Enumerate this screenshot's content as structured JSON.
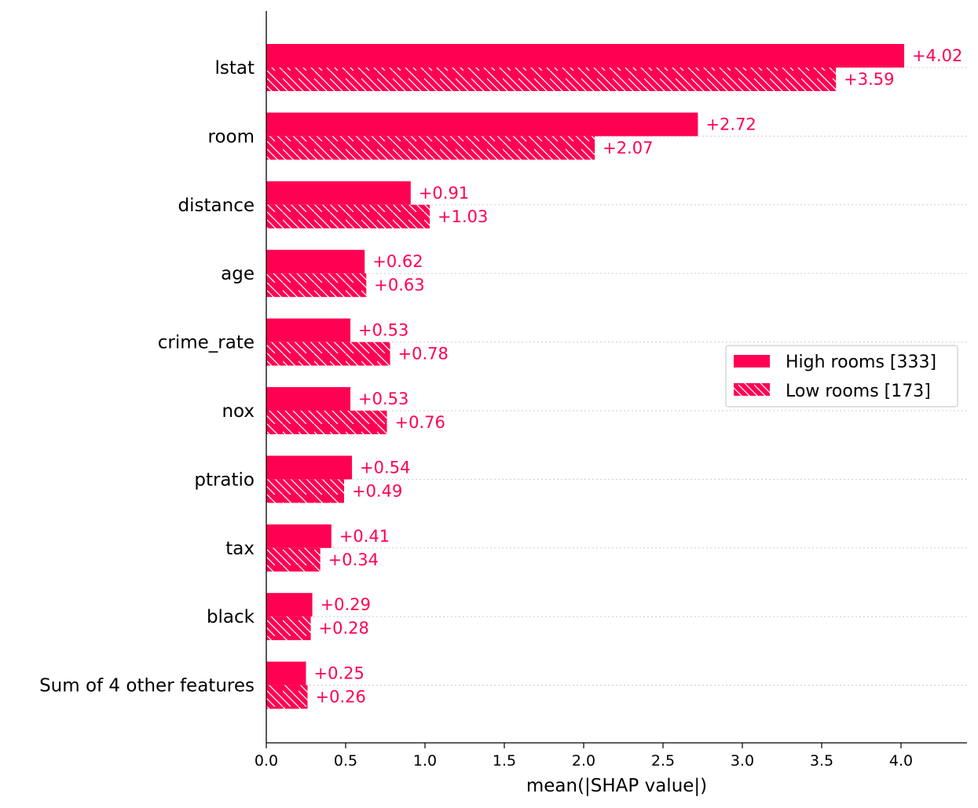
{
  "chart_data": {
    "type": "bar",
    "orientation": "horizontal",
    "categories": [
      "lstat",
      "room",
      "distance",
      "age",
      "crime_rate",
      "nox",
      "ptratio",
      "tax",
      "black",
      "Sum of 4 other features"
    ],
    "series": [
      {
        "name": "High rooms [333]",
        "pattern": "solid",
        "values": [
          4.02,
          2.72,
          0.91,
          0.62,
          0.53,
          0.53,
          0.54,
          0.41,
          0.29,
          0.25
        ],
        "labels": [
          "+4.02",
          "+2.72",
          "+0.91",
          "+0.62",
          "+0.53",
          "+0.53",
          "+0.54",
          "+0.41",
          "+0.29",
          "+0.25"
        ]
      },
      {
        "name": "Low rooms [173]",
        "pattern": "hatched",
        "values": [
          3.59,
          2.07,
          1.03,
          0.63,
          0.78,
          0.76,
          0.49,
          0.34,
          0.28,
          0.26
        ],
        "labels": [
          "+3.59",
          "+2.07",
          "+1.03",
          "+0.63",
          "+0.78",
          "+0.76",
          "+0.49",
          "+0.34",
          "+0.28",
          "+0.26"
        ]
      }
    ],
    "xlabel": "mean(|SHAP value|)",
    "ylabel": "",
    "xlim": [
      0,
      4.42
    ],
    "xticks": [
      "0.0",
      "0.5",
      "1.0",
      "1.5",
      "2.0",
      "2.5",
      "3.0",
      "3.5",
      "4.0"
    ],
    "grid": "dotted horizontal lines per category",
    "legend_placement": "center-right",
    "colors": {
      "bar": "#ff0052",
      "label": "#ff0052",
      "grid": "#cccccc",
      "axis": "#000000"
    }
  }
}
